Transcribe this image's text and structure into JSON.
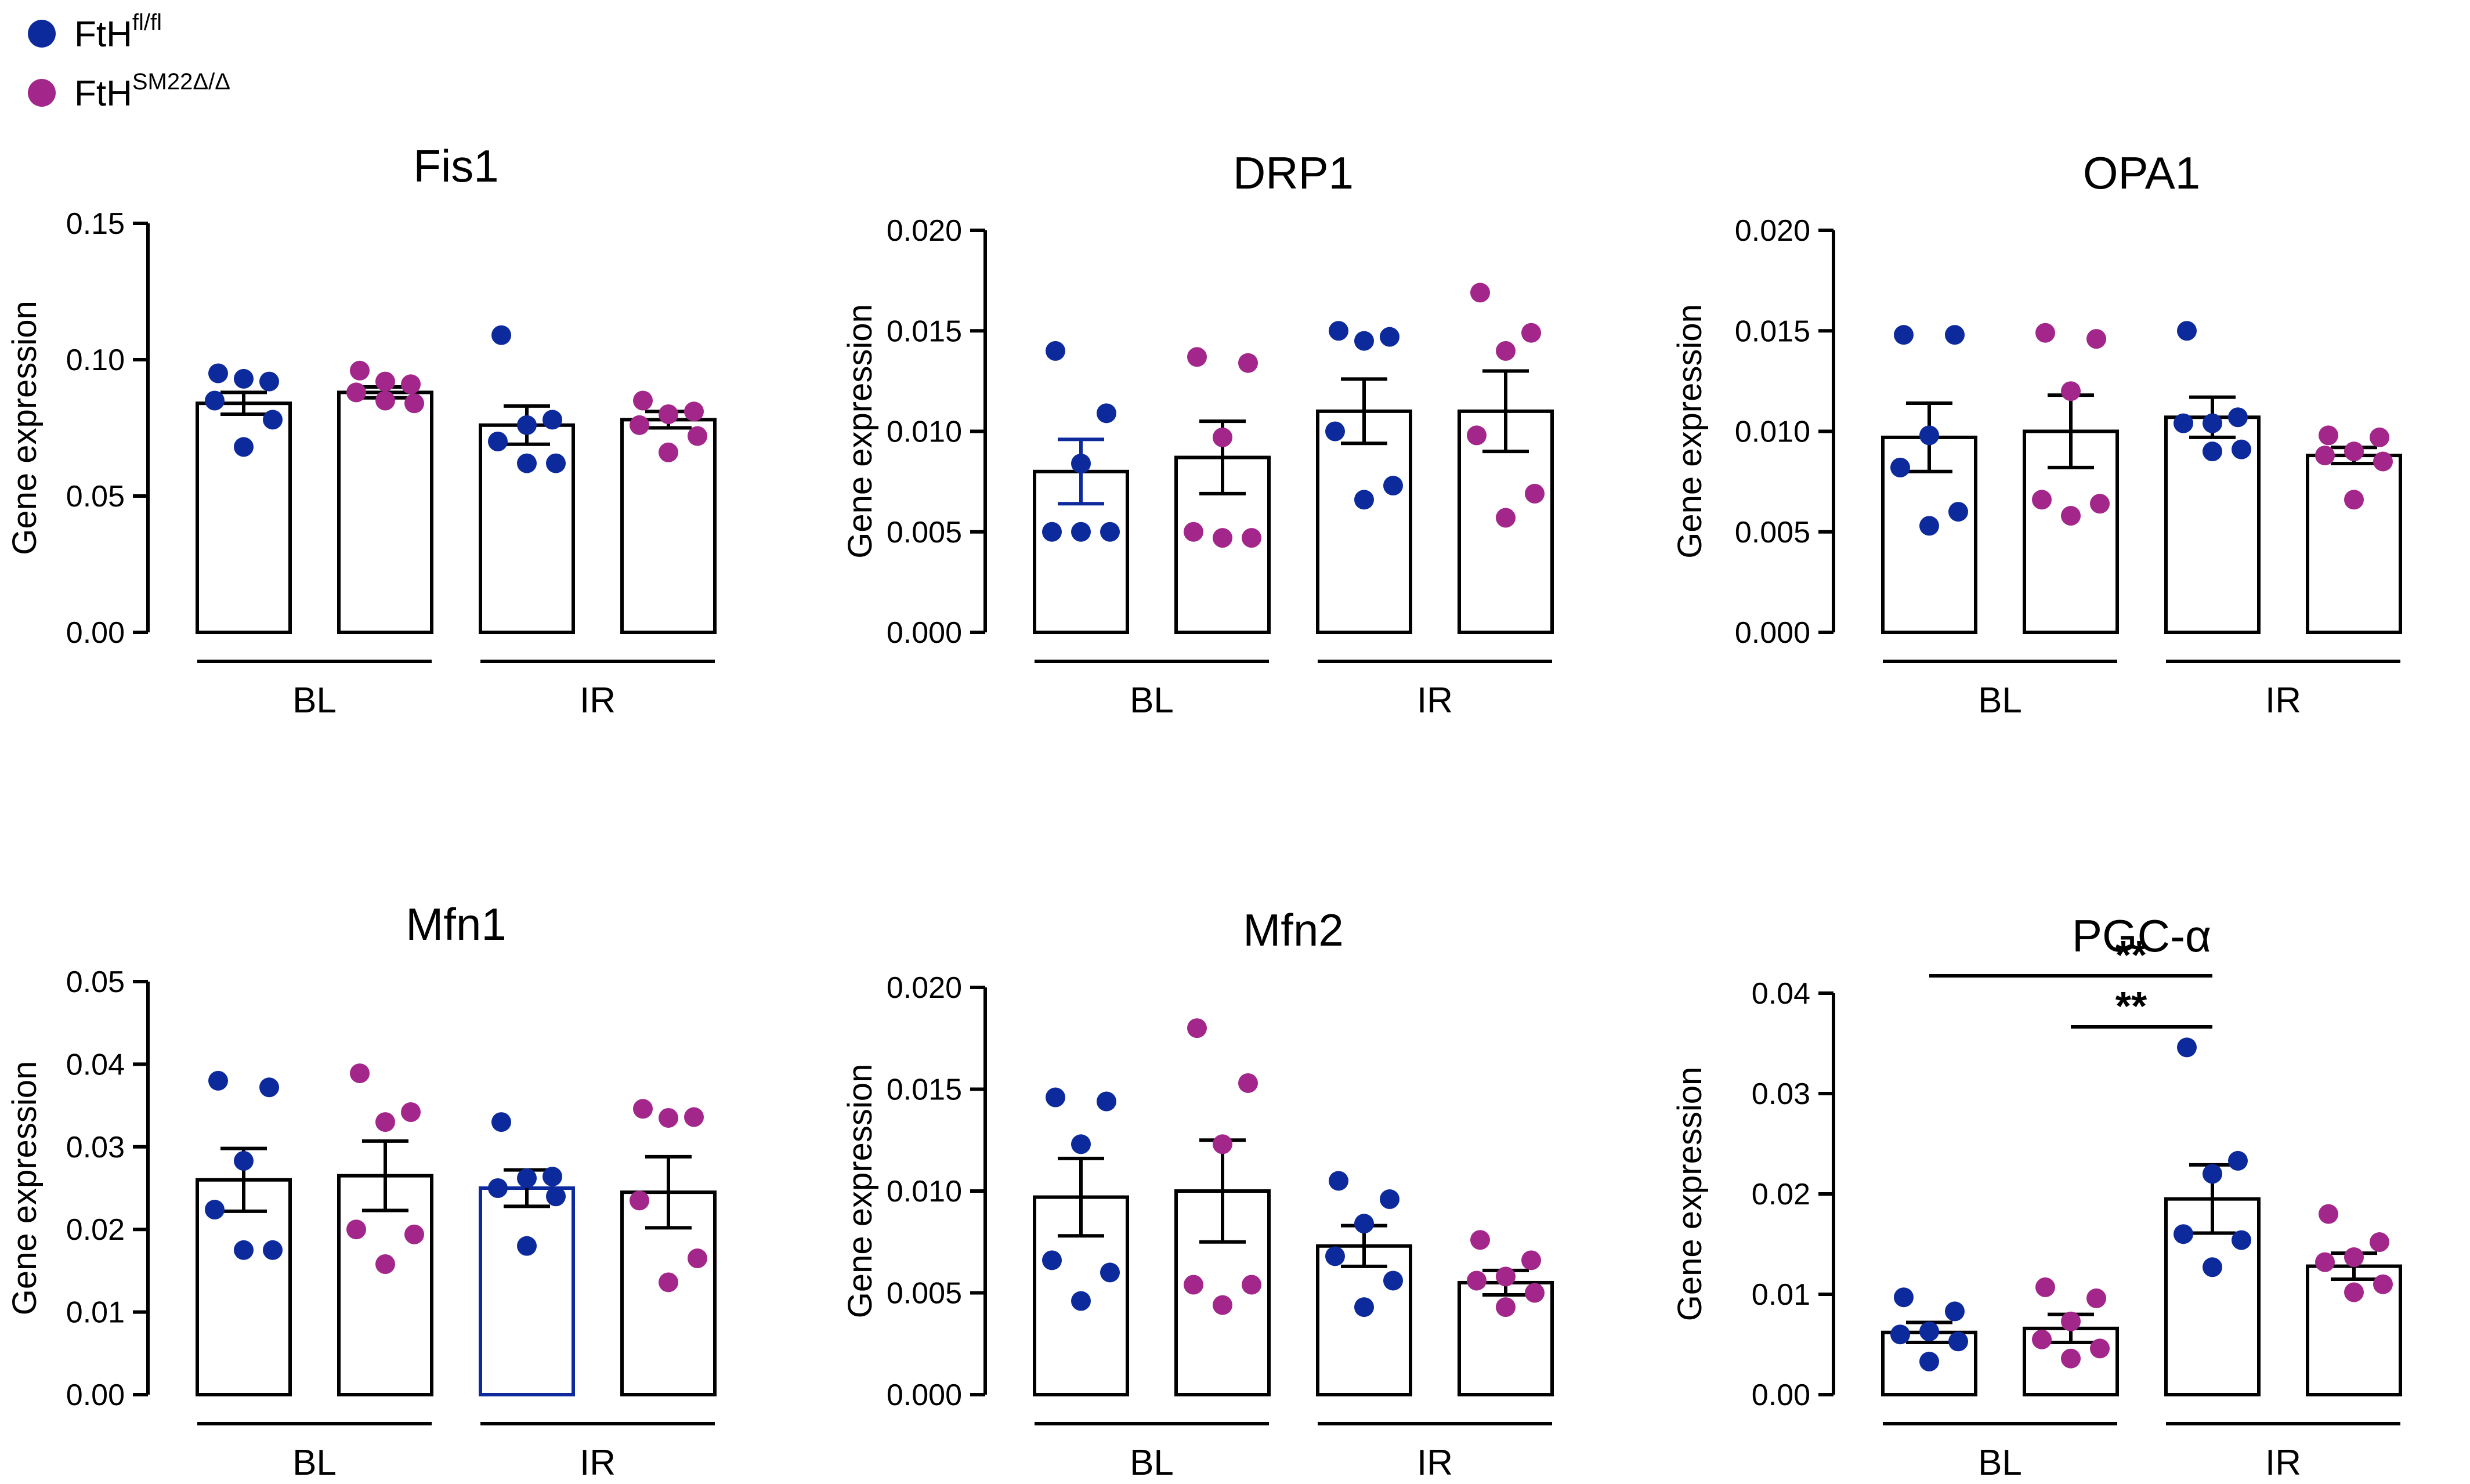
{
  "legend": {
    "items": [
      {
        "base": "FtH",
        "sup": "fl/fl",
        "color": "#0d2a9c"
      },
      {
        "base": "FtH",
        "sup": "SM22Δ/Δ",
        "color": "#a3268a"
      }
    ]
  },
  "colors": {
    "fl": "#0d2a9c",
    "sm22": "#a3268a",
    "axis": "#000000"
  },
  "chart_data": [
    {
      "type": "bar",
      "title": "Fis1",
      "ylabel": "Gene expression",
      "ylim": [
        0,
        0.15
      ],
      "yticks": [
        "0.00",
        "0.05",
        "0.10",
        "0.15"
      ],
      "ytick_values": [
        0,
        0.05,
        0.1,
        0.15
      ],
      "groups": [
        "BL",
        "IR"
      ],
      "bars": [
        {
          "group": "BL",
          "series": "FtH fl/fl",
          "mean": 0.084,
          "sem": 0.004,
          "points": [
            0.095,
            0.092,
            0.093,
            0.085,
            0.078,
            0.068
          ]
        },
        {
          "group": "BL",
          "series": "FtH SM22Δ/Δ",
          "mean": 0.088,
          "sem": 0.002,
          "points": [
            0.096,
            0.091,
            0.092,
            0.088,
            0.084,
            0.085
          ]
        },
        {
          "group": "IR",
          "series": "FtH fl/fl",
          "mean": 0.076,
          "sem": 0.007,
          "points": [
            0.109,
            0.078,
            0.076,
            0.07,
            0.062,
            0.062
          ]
        },
        {
          "group": "IR",
          "series": "FtH SM22Δ/Δ",
          "mean": 0.078,
          "sem": 0.003,
          "points": [
            0.085,
            0.081,
            0.08,
            0.076,
            0.072,
            0.066
          ]
        }
      ],
      "significance": []
    },
    {
      "type": "bar",
      "title": "DRP1",
      "ylabel": "Gene expression",
      "ylim": [
        0,
        0.02
      ],
      "yticks": [
        "0.000",
        "0.005",
        "0.010",
        "0.015",
        "0.020"
      ],
      "ytick_values": [
        0,
        0.005,
        0.01,
        0.015,
        0.02
      ],
      "groups": [
        "BL",
        "IR"
      ],
      "bars": [
        {
          "group": "BL",
          "series": "FtH fl/fl",
          "mean": 0.008,
          "sem": 0.0016,
          "points": [
            0.014,
            0.0109,
            0.0084,
            0.005,
            0.005,
            0.005
          ]
        },
        {
          "group": "BL",
          "series": "FtH SM22Δ/Δ",
          "mean": 0.0087,
          "sem": 0.0018,
          "points": [
            0.0137,
            0.0134,
            0.0097,
            0.005,
            0.0047,
            0.0047
          ]
        },
        {
          "group": "IR",
          "series": "FtH fl/fl",
          "mean": 0.011,
          "sem": 0.0016,
          "points": [
            0.015,
            0.0147,
            0.0145,
            0.01,
            0.0073,
            0.0066
          ]
        },
        {
          "group": "IR",
          "series": "FtH SM22Δ/Δ",
          "mean": 0.011,
          "sem": 0.002,
          "points": [
            0.0169,
            0.0149,
            0.014,
            0.0098,
            0.0069,
            0.0057
          ]
        }
      ],
      "significance": []
    },
    {
      "type": "bar",
      "title": "OPA1",
      "ylabel": "Gene expression",
      "ylim": [
        0,
        0.02
      ],
      "yticks": [
        "0.000",
        "0.005",
        "0.010",
        "0.015",
        "0.020"
      ],
      "ytick_values": [
        0,
        0.005,
        0.01,
        0.015,
        0.02
      ],
      "groups": [
        "BL",
        "IR"
      ],
      "bars": [
        {
          "group": "BL",
          "series": "FtH fl/fl",
          "mean": 0.0097,
          "sem": 0.0017,
          "points": [
            0.0148,
            0.0148,
            0.0098,
            0.0082,
            0.006,
            0.0053
          ]
        },
        {
          "group": "BL",
          "series": "FtH SM22Δ/Δ",
          "mean": 0.01,
          "sem": 0.0018,
          "points": [
            0.0149,
            0.0146,
            0.012,
            0.0066,
            0.0064,
            0.0058
          ]
        },
        {
          "group": "IR",
          "series": "FtH fl/fl",
          "mean": 0.0107,
          "sem": 0.001,
          "points": [
            0.015,
            0.0107,
            0.0104,
            0.0104,
            0.0091,
            0.009
          ]
        },
        {
          "group": "IR",
          "series": "FtH SM22Δ/Δ",
          "mean": 0.0088,
          "sem": 0.0004,
          "points": [
            0.0098,
            0.0097,
            0.009,
            0.0088,
            0.0085,
            0.0066
          ]
        }
      ],
      "significance": []
    },
    {
      "type": "bar",
      "title": "Mfn1",
      "ylabel": "Gene expression",
      "ylim": [
        0,
        0.05
      ],
      "yticks": [
        "0.00",
        "0.01",
        "0.02",
        "0.03",
        "0.04",
        "0.05"
      ],
      "ytick_values": [
        0,
        0.01,
        0.02,
        0.03,
        0.04,
        0.05
      ],
      "groups": [
        "BL",
        "IR"
      ],
      "bars": [
        {
          "group": "BL",
          "series": "FtH fl/fl",
          "mean": 0.026,
          "sem": 0.0038,
          "points": [
            0.038,
            0.0372,
            0.0283,
            0.0224,
            0.0175,
            0.0175
          ]
        },
        {
          "group": "BL",
          "series": "FtH SM22Δ/Δ",
          "mean": 0.0265,
          "sem": 0.0042,
          "points": [
            0.0389,
            0.0342,
            0.033,
            0.02,
            0.0194,
            0.0158
          ]
        },
        {
          "group": "IR",
          "series": "FtH fl/fl",
          "mean": 0.025,
          "sem": 0.0022,
          "points": [
            0.033,
            0.0264,
            0.0262,
            0.025,
            0.024,
            0.018
          ]
        },
        {
          "group": "IR",
          "series": "FtH SM22Δ/Δ",
          "mean": 0.0245,
          "sem": 0.0043,
          "points": [
            0.0346,
            0.0336,
            0.0335,
            0.0235,
            0.0165,
            0.0136
          ]
        }
      ],
      "significance": []
    },
    {
      "type": "bar",
      "title": "Mfn2",
      "ylabel": "Gene expression",
      "ylim": [
        0,
        0.02
      ],
      "yticks": [
        "0.000",
        "0.005",
        "0.010",
        "0.015",
        "0.020"
      ],
      "ytick_values": [
        0,
        0.005,
        0.01,
        0.015,
        0.02
      ],
      "groups": [
        "BL",
        "IR"
      ],
      "bars": [
        {
          "group": "BL",
          "series": "FtH fl/fl",
          "mean": 0.0097,
          "sem": 0.0019,
          "points": [
            0.0146,
            0.0144,
            0.0123,
            0.0066,
            0.006,
            0.0046
          ]
        },
        {
          "group": "BL",
          "series": "FtH SM22Δ/Δ",
          "mean": 0.01,
          "sem": 0.0025,
          "points": [
            0.018,
            0.0153,
            0.0123,
            0.0054,
            0.0054,
            0.0044
          ]
        },
        {
          "group": "IR",
          "series": "FtH fl/fl",
          "mean": 0.0073,
          "sem": 0.001,
          "points": [
            0.0105,
            0.0096,
            0.0084,
            0.0068,
            0.0056,
            0.0043
          ]
        },
        {
          "group": "IR",
          "series": "FtH SM22Δ/Δ",
          "mean": 0.0055,
          "sem": 0.0006,
          "points": [
            0.0076,
            0.0066,
            0.0058,
            0.0056,
            0.005,
            0.0043
          ]
        }
      ],
      "significance": []
    },
    {
      "type": "bar",
      "title": "PGC-α",
      "ylabel": "Gene expression",
      "ylim": [
        0,
        0.04
      ],
      "yticks": [
        "0.00",
        "0.01",
        "0.02",
        "0.03",
        "0.04"
      ],
      "ytick_values": [
        0,
        0.01,
        0.02,
        0.03,
        0.04
      ],
      "groups": [
        "BL",
        "IR"
      ],
      "bars": [
        {
          "group": "BL",
          "series": "FtH fl/fl",
          "mean": 0.0062,
          "sem": 0.001,
          "points": [
            0.0097,
            0.0083,
            0.0063,
            0.006,
            0.0053,
            0.0033
          ]
        },
        {
          "group": "BL",
          "series": "FtH SM22Δ/Δ",
          "mean": 0.0066,
          "sem": 0.0014,
          "points": [
            0.0107,
            0.0096,
            0.0073,
            0.0055,
            0.0046,
            0.0036
          ]
        },
        {
          "group": "IR",
          "series": "FtH fl/fl",
          "mean": 0.0195,
          "sem": 0.0034,
          "points": [
            0.0346,
            0.0233,
            0.022,
            0.016,
            0.0154,
            0.0127
          ]
        },
        {
          "group": "IR",
          "series": "FtH SM22Δ/Δ",
          "mean": 0.0128,
          "sem": 0.0013,
          "points": [
            0.018,
            0.0152,
            0.0137,
            0.0132,
            0.011,
            0.0102
          ]
        }
      ],
      "significance": [
        {
          "from": 0,
          "to": 2,
          "label": "**"
        },
        {
          "from": 1,
          "to": 2,
          "label": "**"
        }
      ]
    }
  ]
}
